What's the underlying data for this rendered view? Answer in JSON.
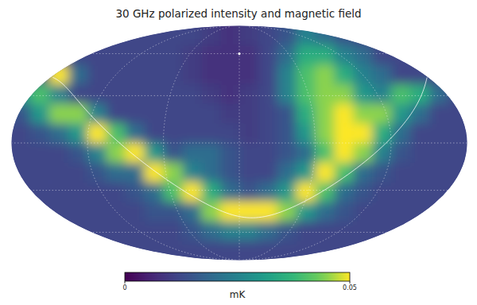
{
  "chart_data": {
    "type": "heatmap",
    "title": "30 GHz polarized intensity and magnetic field",
    "cells": [
      [
        0.012,
        0.012,
        0.012,
        0.012,
        0.012,
        0.012,
        0.012,
        0.012,
        0.012,
        0.012,
        0.01,
        0.008,
        0.01,
        0.012,
        0.015,
        0.025,
        0.02,
        0.015,
        0.012,
        0.012,
        0.012,
        0.012,
        0.012,
        0.012
      ],
      [
        0.012,
        0.012,
        0.012,
        0.012,
        0.012,
        0.012,
        0.012,
        0.012,
        0.012,
        0.01,
        0.008,
        0.008,
        0.008,
        0.012,
        0.02,
        0.035,
        0.035,
        0.025,
        0.02,
        0.012,
        0.012,
        0.012,
        0.012,
        0.012
      ],
      [
        0.015,
        0.015,
        0.05,
        0.02,
        0.012,
        0.012,
        0.012,
        0.012,
        0.012,
        0.01,
        0.008,
        0.008,
        0.008,
        0.012,
        0.025,
        0.04,
        0.045,
        0.035,
        0.025,
        0.02,
        0.012,
        0.012,
        0.012,
        0.012
      ],
      [
        0.03,
        0.04,
        0.025,
        0.012,
        0.012,
        0.012,
        0.012,
        0.012,
        0.012,
        0.012,
        0.01,
        0.008,
        0.01,
        0.012,
        0.025,
        0.04,
        0.045,
        0.045,
        0.03,
        0.025,
        0.04,
        0.035,
        0.02,
        0.012
      ],
      [
        0.015,
        0.03,
        0.045,
        0.045,
        0.025,
        0.012,
        0.012,
        0.012,
        0.012,
        0.012,
        0.012,
        0.01,
        0.01,
        0.012,
        0.015,
        0.035,
        0.045,
        0.05,
        0.045,
        0.045,
        0.03,
        0.02,
        0.012,
        0.012
      ],
      [
        0.012,
        0.015,
        0.02,
        0.03,
        0.05,
        0.04,
        0.02,
        0.012,
        0.012,
        0.012,
        0.012,
        0.012,
        0.01,
        0.012,
        0.015,
        0.03,
        0.045,
        0.05,
        0.05,
        0.035,
        0.02,
        0.012,
        0.012,
        0.012
      ],
      [
        0.012,
        0.012,
        0.012,
        0.015,
        0.025,
        0.045,
        0.05,
        0.03,
        0.015,
        0.02,
        0.02,
        0.015,
        0.012,
        0.012,
        0.015,
        0.02,
        0.04,
        0.05,
        0.045,
        0.025,
        0.015,
        0.012,
        0.012,
        0.012
      ],
      [
        0.012,
        0.012,
        0.012,
        0.012,
        0.015,
        0.02,
        0.02,
        0.05,
        0.045,
        0.025,
        0.02,
        0.015,
        0.012,
        0.012,
        0.02,
        0.03,
        0.05,
        0.04,
        0.02,
        0.015,
        0.012,
        0.012,
        0.012,
        0.012
      ],
      [
        0.012,
        0.012,
        0.012,
        0.012,
        0.012,
        0.012,
        0.015,
        0.02,
        0.04,
        0.05,
        0.035,
        0.02,
        0.015,
        0.02,
        0.03,
        0.05,
        0.04,
        0.02,
        0.015,
        0.012,
        0.012,
        0.012,
        0.012,
        0.012
      ],
      [
        0.012,
        0.012,
        0.012,
        0.012,
        0.012,
        0.012,
        0.012,
        0.015,
        0.015,
        0.02,
        0.045,
        0.05,
        0.05,
        0.05,
        0.045,
        0.03,
        0.02,
        0.015,
        0.012,
        0.012,
        0.012,
        0.012,
        0.012,
        0.012
      ],
      [
        0.012,
        0.012,
        0.012,
        0.012,
        0.012,
        0.012,
        0.012,
        0.012,
        0.012,
        0.015,
        0.02,
        0.025,
        0.025,
        0.02,
        0.015,
        0.012,
        0.012,
        0.012,
        0.012,
        0.012,
        0.012,
        0.012,
        0.012,
        0.012
      ],
      [
        0.012,
        0.012,
        0.012,
        0.012,
        0.012,
        0.012,
        0.012,
        0.012,
        0.012,
        0.012,
        0.012,
        0.012,
        0.012,
        0.012,
        0.012,
        0.012,
        0.012,
        0.012,
        0.012,
        0.012,
        0.012,
        0.012,
        0.012,
        0.012
      ]
    ],
    "colorbar": {
      "range": [
        0,
        0.05
      ],
      "ticks": [
        0,
        0.05
      ],
      "label": "mK"
    }
  }
}
